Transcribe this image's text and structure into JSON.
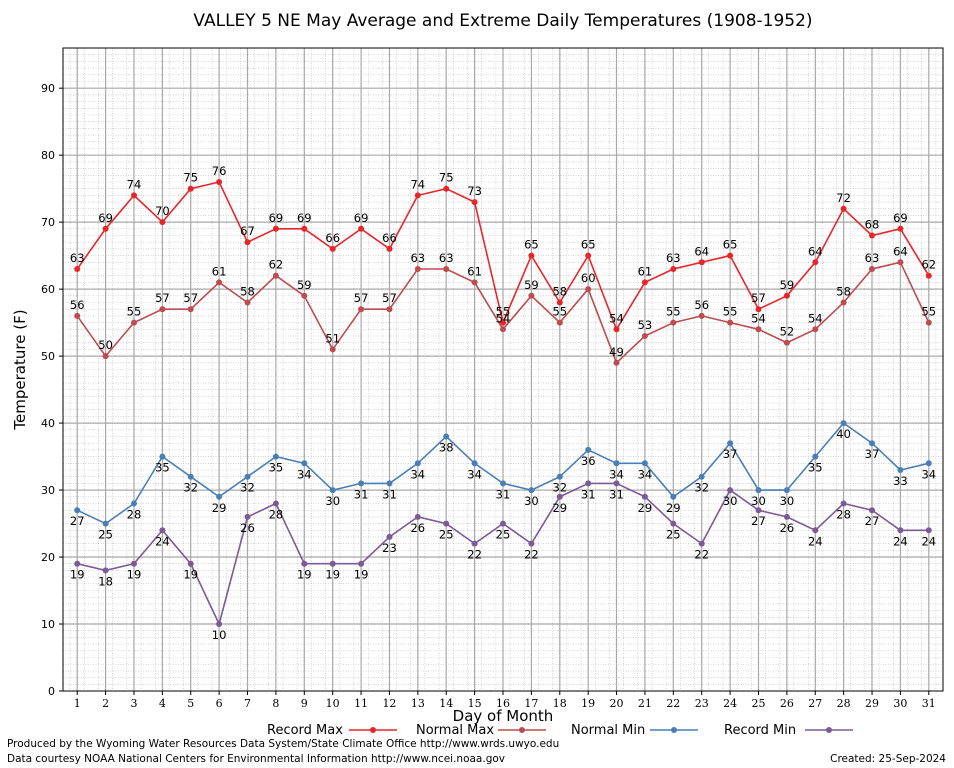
{
  "chart_data": {
    "type": "line",
    "title": "VALLEY 5 NE May Average and Extreme Daily Temperatures (1908-1952)",
    "xlabel": "Day of Month",
    "ylabel": "Temperature (F)",
    "x": [
      1,
      2,
      3,
      4,
      5,
      6,
      7,
      8,
      9,
      10,
      11,
      12,
      13,
      14,
      15,
      16,
      17,
      18,
      19,
      20,
      21,
      22,
      23,
      24,
      25,
      26,
      27,
      28,
      29,
      30,
      31
    ],
    "xlim": [
      0.5,
      31.5
    ],
    "ylim": [
      0,
      96
    ],
    "yticks": [
      0,
      10,
      20,
      30,
      40,
      50,
      60,
      70,
      80,
      90
    ],
    "grid": true,
    "legend_position": "bottom",
    "series": [
      {
        "name": "Record Max",
        "color": "#e8262a",
        "values": [
          63,
          69,
          74,
          70,
          75,
          76,
          67,
          69,
          69,
          66,
          69,
          66,
          74,
          75,
          73,
          55,
          65,
          58,
          65,
          54,
          61,
          63,
          64,
          65,
          57,
          59,
          64,
          72,
          68,
          69,
          62
        ]
      },
      {
        "name": "Normal Max",
        "color": "#bd4b4f",
        "values": [
          56,
          50,
          55,
          57,
          57,
          61,
          58,
          62,
          59,
          51,
          57,
          57,
          63,
          63,
          61,
          54,
          59,
          55,
          60,
          49,
          53,
          55,
          56,
          55,
          54,
          52,
          54,
          58,
          63,
          64,
          55
        ]
      },
      {
        "name": "Normal Min",
        "color": "#4a7fb5",
        "values": [
          27,
          25,
          28,
          35,
          32,
          29,
          32,
          35,
          34,
          30,
          31,
          31,
          34,
          38,
          34,
          31,
          30,
          32,
          36,
          34,
          34,
          29,
          32,
          37,
          30,
          30,
          35,
          40,
          37,
          33,
          34
        ]
      },
      {
        "name": "Record Min",
        "color": "#7b5a96",
        "values": [
          19,
          18,
          19,
          24,
          19,
          10,
          26,
          28,
          19,
          19,
          19,
          23,
          26,
          25,
          22,
          25,
          22,
          29,
          31,
          31,
          29,
          25,
          22,
          30,
          27,
          26,
          24,
          28,
          27,
          24,
          24
        ]
      }
    ]
  },
  "footer": {
    "produced_by": "Produced by the Wyoming Water Resources Data System/State Climate Office http://www.wrds.uwyo.edu",
    "courtesy": "Data courtesy NOAA National Centers for Environmental Information http://www.ncei.noaa.gov",
    "created": "Created:  25-Sep-2024"
  }
}
